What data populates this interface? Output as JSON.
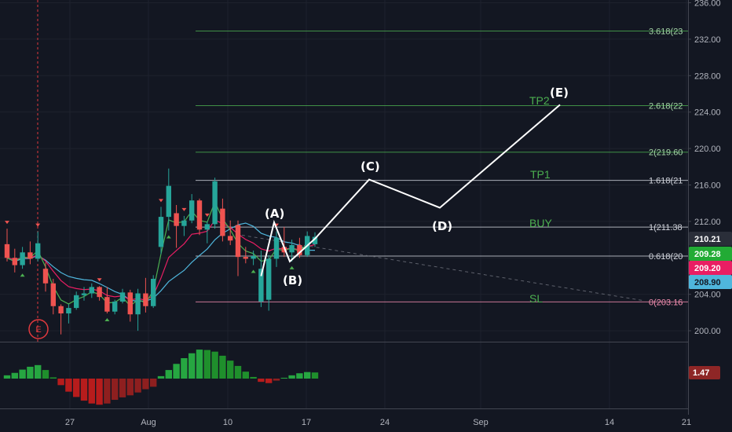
{
  "chart_data": {
    "type": "candlestick",
    "price_axis": {
      "ylim": [
        198.8,
        236.3
      ],
      "ticks": [
        200.0,
        204.0,
        208.0,
        212.0,
        216.0,
        220.0,
        224.0,
        228.0,
        232.0,
        236.0
      ]
    },
    "time_axis": {
      "ticks": [
        "27",
        "Aug",
        "10",
        "17",
        "24",
        "Sep",
        "14",
        "21"
      ]
    },
    "candles": [
      [
        209.5,
        211.2,
        207.6,
        208.0
      ],
      [
        208.0,
        209.0,
        206.4,
        207.2
      ],
      [
        207.2,
        209.2,
        206.8,
        208.6
      ],
      [
        208.6,
        209.8,
        207.3,
        207.9
      ],
      [
        207.9,
        210.9,
        207.6,
        209.6
      ],
      [
        206.8,
        207.5,
        204.3,
        205.2
      ],
      [
        205.2,
        205.7,
        201.8,
        202.7
      ],
      [
        202.7,
        202.9,
        199.6,
        201.9
      ],
      [
        201.9,
        202.9,
        200.8,
        202.5
      ],
      [
        202.5,
        204.3,
        202.3,
        203.9
      ],
      [
        203.9,
        204.8,
        203.3,
        204.1
      ],
      [
        204.1,
        205.2,
        203.6,
        204.8
      ],
      [
        204.8,
        204.9,
        203.3,
        203.7
      ],
      [
        203.7,
        204.8,
        201.9,
        202.1
      ],
      [
        202.1,
        203.4,
        201.8,
        203.2
      ],
      [
        203.2,
        204.6,
        203.0,
        204.2
      ],
      [
        204.2,
        204.5,
        201.0,
        201.8
      ],
      [
        201.8,
        204.6,
        200.0,
        204.1
      ],
      [
        204.1,
        205.8,
        202.0,
        202.7
      ],
      [
        202.7,
        206.1,
        202.5,
        205.7
      ],
      [
        209.2,
        213.6,
        208.4,
        212.5
      ],
      [
        212.5,
        217.8,
        211.0,
        215.9
      ],
      [
        212.9,
        213.8,
        209.1,
        211.5
      ],
      [
        211.5,
        212.6,
        210.4,
        212.1
      ],
      [
        212.1,
        215.0,
        211.8,
        214.3
      ],
      [
        214.3,
        214.5,
        210.5,
        211.1
      ],
      [
        211.1,
        212.0,
        209.6,
        211.7
      ],
      [
        211.7,
        216.8,
        211.2,
        216.4
      ],
      [
        213.4,
        214.5,
        209.8,
        210.4
      ],
      [
        210.4,
        212.1,
        209.4,
        209.9
      ],
      [
        211.6,
        212.1,
        206.0,
        208.1
      ],
      [
        208.1,
        209.2,
        207.4,
        207.9
      ],
      [
        207.9,
        208.8,
        207.2,
        208.2
      ],
      [
        203.2,
        208.8,
        202.6,
        206.8
      ],
      [
        203.4,
        208.3,
        202.2,
        207.9
      ],
      [
        207.9,
        210.9,
        207.0,
        210.2
      ],
      [
        209.2,
        211.4,
        208.1,
        208.6
      ],
      [
        208.6,
        210.0,
        207.6,
        209.4
      ],
      [
        209.4,
        210.2,
        208.0,
        208.3
      ],
      [
        208.3,
        210.9,
        208.1,
        210.4
      ],
      [
        209.5,
        210.8,
        209.2,
        210.3
      ]
    ],
    "fib_levels": [
      {
        "label": "3.618(23",
        "value": 232.9
      },
      {
        "label": "2.618(22",
        "value": 224.7
      },
      {
        "label": "2(219.60",
        "value": 219.6
      },
      {
        "label": "1.618(21",
        "value": 216.5
      },
      {
        "label": "1(211.38",
        "value": 211.38
      },
      {
        "label": "0.618(20",
        "value": 208.2
      },
      {
        "label": "0(203.16",
        "value": 203.16
      }
    ],
    "wave_labels": [
      "(A)",
      "(B)",
      "(C)",
      "(D)",
      "(E)"
    ],
    "annotations": [
      "TP2",
      "TP1",
      "BUY",
      "SL"
    ],
    "entry_marker": "E",
    "price_badges": [
      {
        "value": "210.21",
        "color": "#2a2e39",
        "text": "#ffffff"
      },
      {
        "value": "209.28",
        "color": "#22ab35",
        "text": "#ffffff"
      },
      {
        "value": "209.20",
        "color": "#e91e63",
        "text": "#ffffff"
      },
      {
        "value": "208.90",
        "color": "#4fb6dc",
        "text": "#131722"
      }
    ],
    "oscillator": {
      "badge": "1.47",
      "histogram": [
        0.8,
        1.4,
        2.2,
        2.9,
        3.3,
        2.1,
        0.3,
        -1.6,
        -3.2,
        -4.5,
        -5.4,
        -6.1,
        -6.4,
        -6.1,
        -5.2,
        -4.6,
        -4.1,
        -3.4,
        -2.6,
        -2.0,
        0.6,
        2.1,
        3.6,
        5.0,
        6.2,
        7.1,
        7.0,
        6.6,
        5.6,
        4.4,
        3.1,
        1.7,
        0.4,
        -0.8,
        -1.1,
        -0.5,
        0.2,
        0.8,
        1.3,
        1.6,
        1.5
      ]
    },
    "colors": {
      "up": "#26a69a",
      "down": "#ef5350",
      "fib": "#4caf50",
      "wave": "#ffffff",
      "ma_green": "#4caf50",
      "ma_red": "#e91e63",
      "ma_cyan": "#4fb6dc",
      "hist_up": "#1f8f2c",
      "hist_down": "#8e1f1f"
    }
  }
}
